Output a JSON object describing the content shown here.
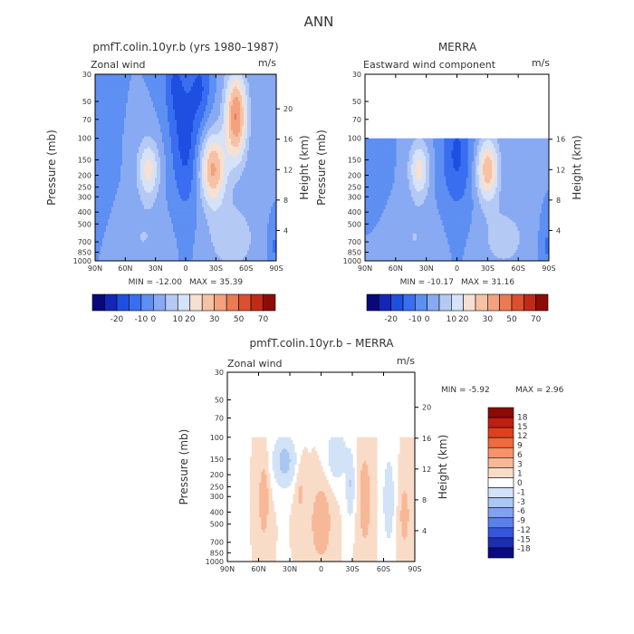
{
  "figure_title": "ANN",
  "chart_data": [
    {
      "type": "heatmap",
      "id": "p1",
      "title": "pmfT.colin.10yr.b (yrs 1980–1987)",
      "variable": "Zonal wind",
      "units": "m/s",
      "xlabel": "",
      "ylabel": "Pressure (mb)",
      "y2label": "Height (km)",
      "xlim": [
        90,
        -90
      ],
      "ylim": [
        1000,
        30
      ],
      "x_ticks": [
        "90N",
        "60N",
        "30N",
        "0",
        "30S",
        "60S",
        "90S"
      ],
      "y_ticks": [
        "30",
        "50",
        "70",
        "100",
        "150",
        "200",
        "250",
        "300",
        "400",
        "500",
        "700",
        "850",
        "1000"
      ],
      "y2_ticks": [
        "4",
        "8",
        "12",
        "16",
        "20"
      ],
      "data_top_mb": 30,
      "min_label": "MIN = -12.00",
      "max_label": "MAX = 35.39",
      "colorbar_labels": [
        "-20",
        "-10",
        "0",
        "10",
        "20",
        "30",
        "50",
        "70"
      ]
    },
    {
      "type": "heatmap",
      "id": "p2",
      "title": "MERRA",
      "variable": "Eastward wind component",
      "units": "m/s",
      "xlabel": "",
      "ylabel": "Pressure (mb)",
      "y2label": "Height (km)",
      "xlim": [
        90,
        -90
      ],
      "ylim": [
        1000,
        30
      ],
      "x_ticks": [
        "90N",
        "60N",
        "30N",
        "0",
        "30S",
        "60S",
        "90S"
      ],
      "y_ticks": [
        "30",
        "50",
        "70",
        "100",
        "150",
        "200",
        "250",
        "300",
        "400",
        "500",
        "700",
        "850",
        "1000"
      ],
      "y2_ticks": [
        "4",
        "8",
        "12",
        "16"
      ],
      "data_top_mb": 100,
      "min_label": "MIN = -10.17",
      "max_label": "MAX = 31.16",
      "colorbar_labels": [
        "-20",
        "-10",
        "0",
        "10",
        "20",
        "30",
        "50",
        "70"
      ]
    },
    {
      "type": "heatmap",
      "id": "p3",
      "title": "pmfT.colin.10yr.b – MERRA",
      "variable": "Zonal wind",
      "units": "m/s",
      "xlabel": "",
      "ylabel": "Pressure (mb)",
      "y2label": "Height (km)",
      "xlim": [
        90,
        -90
      ],
      "ylim": [
        1000,
        30
      ],
      "x_ticks": [
        "90N",
        "60N",
        "30N",
        "0",
        "30S",
        "60S",
        "90S"
      ],
      "y_ticks": [
        "30",
        "50",
        "70",
        "100",
        "150",
        "200",
        "250",
        "300",
        "400",
        "500",
        "700",
        "850",
        "1000"
      ],
      "y2_ticks": [
        "4",
        "8",
        "12",
        "16",
        "20"
      ],
      "data_top_mb": 100,
      "min_label": "MIN =   -5.92",
      "max_label": "MAX =   2.96",
      "colorbar_labels": [
        "18",
        "15",
        "12",
        "9",
        "6",
        "3",
        "1",
        "0",
        "-1",
        "-3",
        "-6",
        "-9",
        "-12",
        "-15",
        "-18"
      ]
    }
  ],
  "colors": {
    "abs_scale": [
      "#08087a",
      "#1426b8",
      "#1e4fe0",
      "#3a6ef0",
      "#5e8ff2",
      "#88aaf2",
      "#b4c9f4",
      "#d6e2f7",
      "#f6e0d2",
      "#f6c2a6",
      "#f3a17e",
      "#ec7a52",
      "#db5030",
      "#c22a18",
      "#8e0c08"
    ],
    "diff_scale": [
      "#8a0a06",
      "#c01e12",
      "#e0401f",
      "#f06a3c",
      "#f5946a",
      "#f7b898",
      "#f9dcc8",
      "#ffffff",
      "#d2e2f7",
      "#aac6f2",
      "#7fa3ee",
      "#5a80ea",
      "#3456dc",
      "#1c2eb4",
      "#0c0a80"
    ]
  }
}
